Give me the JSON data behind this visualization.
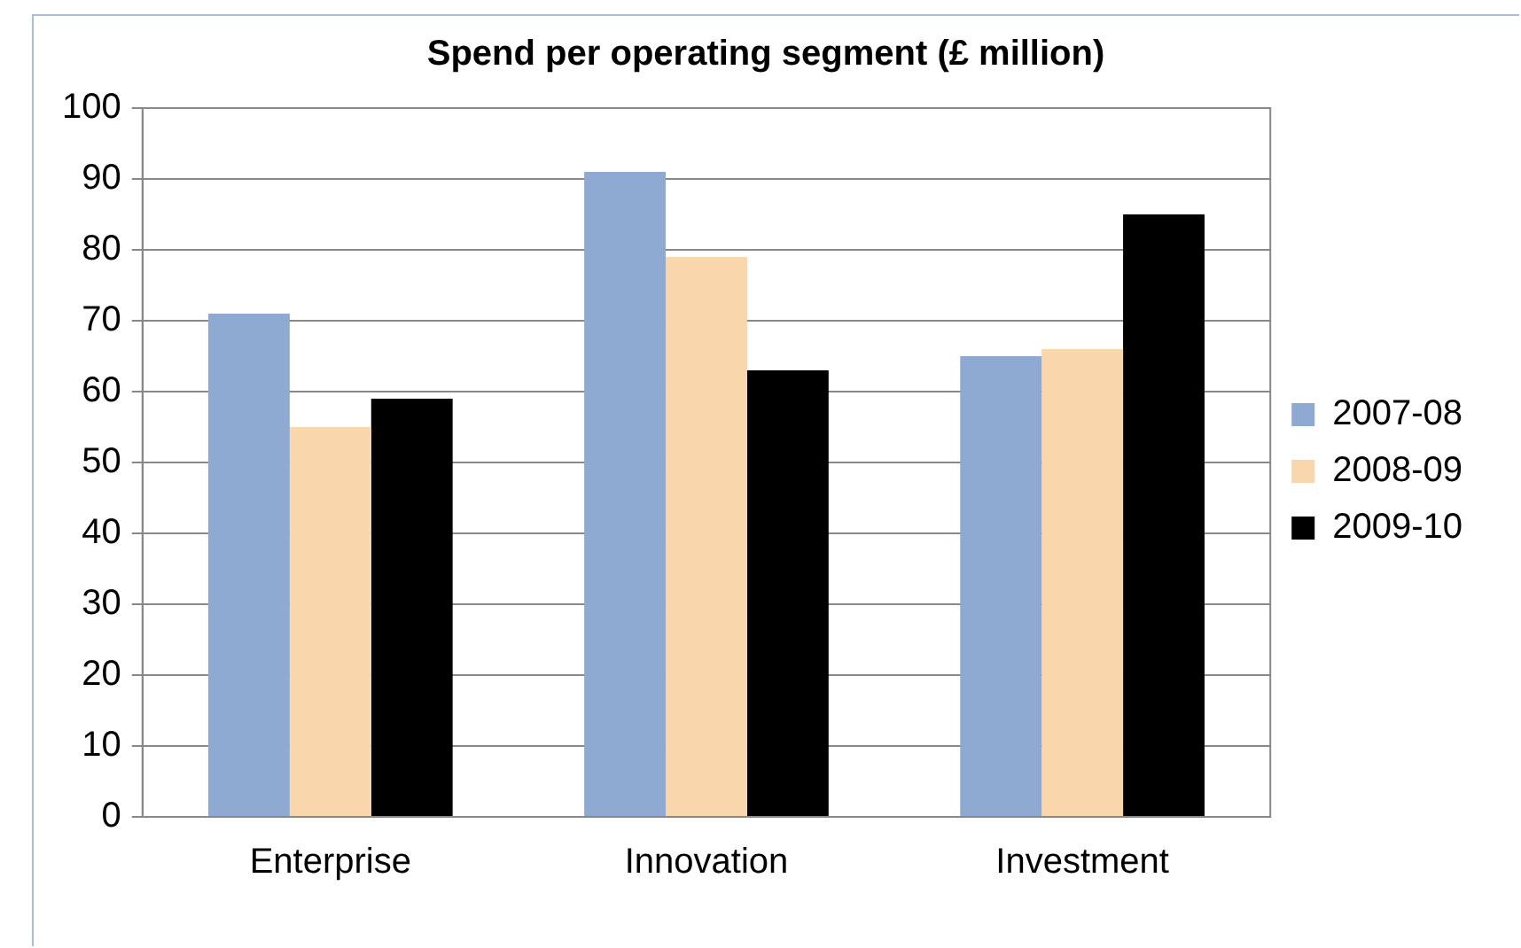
{
  "chart_data": {
    "type": "bar",
    "title": "Spend per operating segment (£ million)",
    "categories": [
      "Enterprise",
      "Innovation",
      "Investment"
    ],
    "series": [
      {
        "name": "2007-08",
        "color": "#8eaad3",
        "values": [
          71,
          91,
          65
        ]
      },
      {
        "name": "2008-09",
        "color": "#f9d6ac",
        "values": [
          55,
          79,
          66
        ]
      },
      {
        "name": "2009-10",
        "color": "#000000",
        "values": [
          59,
          63,
          85
        ]
      }
    ],
    "ylim": [
      0,
      100
    ],
    "yticks": [
      0,
      10,
      20,
      30,
      40,
      50,
      60,
      70,
      80,
      90,
      100
    ],
    "grid": "y",
    "legend": "right"
  }
}
